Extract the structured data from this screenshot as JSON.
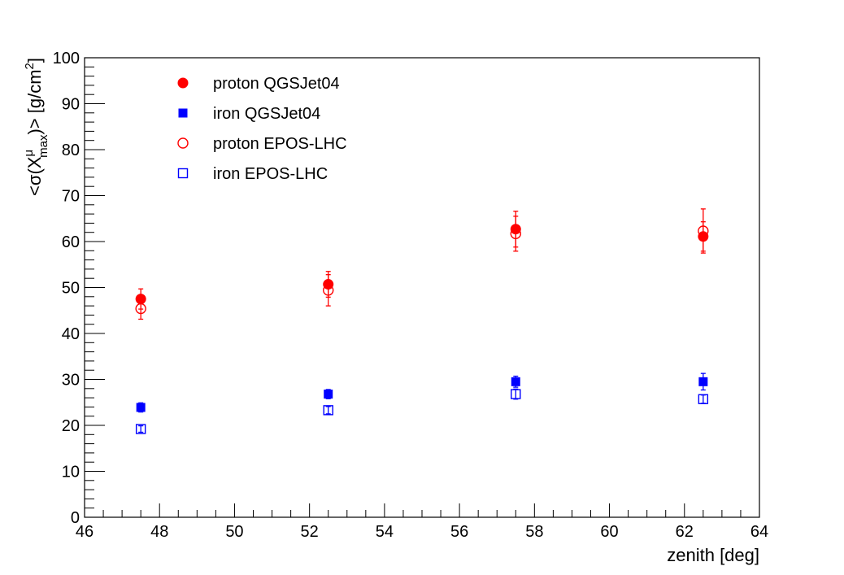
{
  "chart_data": {
    "type": "scatter",
    "title": "",
    "xlabel": "zenith [deg]",
    "ylabel": {
      "base": "<σ(X",
      "sup": "μ",
      "sub": "max",
      "tail": ")> [g/cm",
      "unit_sup": "2",
      "end": "]"
    },
    "xlim": [
      46,
      64
    ],
    "ylim": [
      0,
      100
    ],
    "x_ticks": [
      "46",
      "48",
      "50",
      "52",
      "54",
      "56",
      "58",
      "60",
      "62",
      "64"
    ],
    "y_ticks": [
      "0",
      "10",
      "20",
      "30",
      "40",
      "50",
      "60",
      "70",
      "80",
      "90",
      "100"
    ],
    "legend_position": "top-left",
    "grid": false,
    "series": [
      {
        "name": "proton QGSJet04",
        "color": "#ff0000",
        "marker": "filled-circle",
        "x": [
          47.5,
          52.5,
          57.5,
          62.5
        ],
        "y": [
          47.5,
          50.7,
          62.7,
          61.1
        ],
        "err": [
          2.2,
          2.8,
          3.9,
          3.2
        ]
      },
      {
        "name": "iron QGSJet04",
        "color": "#0000ff",
        "marker": "filled-square",
        "x": [
          47.5,
          52.5,
          57.5,
          62.5
        ],
        "y": [
          23.9,
          26.8,
          29.5,
          29.5
        ],
        "err": [
          1.0,
          1.0,
          1.2,
          1.8
        ]
      },
      {
        "name": "proton EPOS-LHC",
        "color": "#ff0000",
        "marker": "open-circle",
        "x": [
          47.5,
          52.5,
          57.5,
          62.5
        ],
        "y": [
          45.4,
          49.4,
          61.7,
          62.3
        ],
        "err": [
          2.3,
          3.4,
          3.8,
          4.8
        ]
      },
      {
        "name": "iron EPOS-LHC",
        "color": "#0000ff",
        "marker": "open-square",
        "x": [
          47.5,
          52.5,
          57.5,
          62.5
        ],
        "y": [
          19.2,
          23.3,
          26.8,
          25.7
        ],
        "err": [
          0.7,
          0.8,
          1.1,
          0.9
        ]
      }
    ]
  }
}
